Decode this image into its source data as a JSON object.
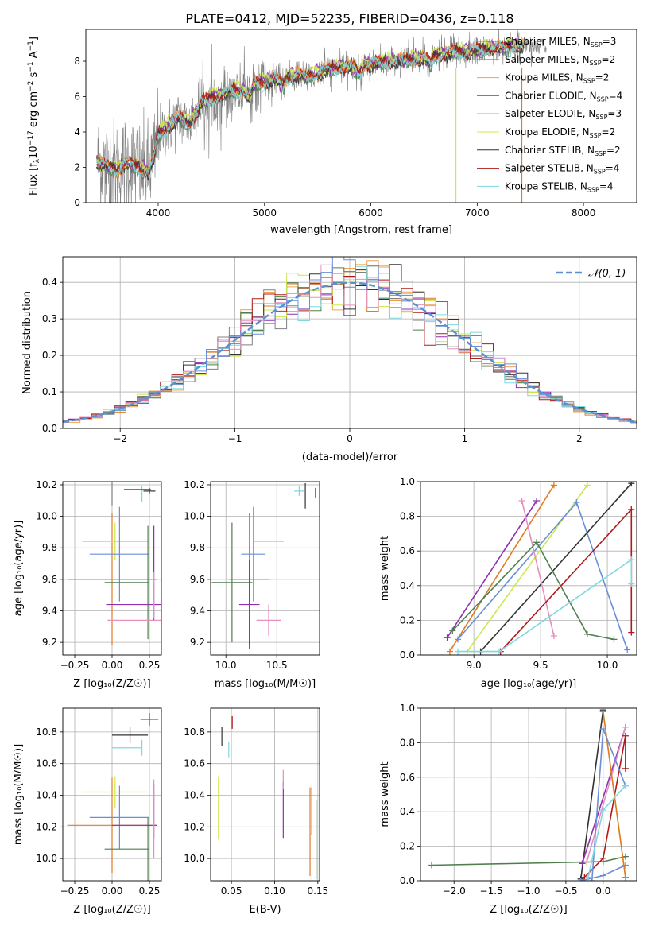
{
  "figure_title": "PLATE=0412, MJD=52235, FIBERID=0436, z=0.118",
  "colors": [
    "#808080",
    "#e07b24",
    "#f0a050",
    "#4f7f4f",
    "#8f2fb0",
    "#cde84a",
    "#333333",
    "#b01a1a",
    "#7fd7e0",
    "#e58fbf",
    "#6a8fd8"
  ],
  "spectrum_legend": [
    {
      "base": "Chabrier MILES, N",
      "sub": "SSP",
      "val": "=3",
      "color": "#808080"
    },
    {
      "base": "Salpeter MILES, N",
      "sub": "SSP",
      "val": "=2",
      "color": "#e07b24"
    },
    {
      "base": "Kroupa MILES, N",
      "sub": "SSP",
      "val": "=2",
      "color": "#f0a050"
    },
    {
      "base": "Chabrier ELODIE, N",
      "sub": "SSP",
      "val": "=4",
      "color": "#4f7f4f"
    },
    {
      "base": "Salpeter ELODIE, N",
      "sub": "SSP",
      "val": "=3",
      "color": "#8f2fb0"
    },
    {
      "base": "Kroupa ELODIE, N",
      "sub": "SSP",
      "val": "=2",
      "color": "#cde84a"
    },
    {
      "base": "Chabrier STELIB, N",
      "sub": "SSP",
      "val": "=2",
      "color": "#333333"
    },
    {
      "base": "Salpeter STELIB, N",
      "sub": "SSP",
      "val": "=4",
      "color": "#b01a1a"
    },
    {
      "base": "Kroupa STELIB, N",
      "sub": "SSP",
      "val": "=4",
      "color": "#7fd7e0"
    }
  ],
  "hist_legend": "𝒩(0, 1)",
  "chart_data": [
    {
      "id": "spectrum",
      "type": "line",
      "xlabel": "wavelength [Angstrom, rest frame]",
      "ylabel": "Flux [f_λ 10⁻¹⁷ erg cm⁻² s⁻¹ A⁻¹]",
      "xlim": [
        3320,
        8500
      ],
      "ylim": [
        0,
        9.8
      ],
      "xticks": [
        4000,
        5000,
        6000,
        7000,
        8000
      ],
      "yticks": [
        0,
        2,
        4,
        6,
        8
      ],
      "model_x": [
        3420,
        3500,
        3600,
        3700,
        3800,
        3900,
        3960,
        4000,
        4100,
        4200,
        4300,
        4400,
        4500,
        4600,
        4700,
        4800,
        4861,
        4900,
        5000,
        5100,
        5175,
        5200,
        5300,
        5400,
        5500,
        5600,
        5700,
        5800,
        5893,
        5950,
        6000,
        6100,
        6200,
        6300,
        6400,
        6500,
        6563,
        6600,
        6700,
        6800,
        6900,
        7000,
        7100,
        7200,
        7300,
        7400,
        7500
      ],
      "model_y": [
        2.3,
        2.1,
        1.9,
        2.2,
        2.0,
        1.7,
        2.4,
        3.8,
        4.3,
        4.8,
        4.4,
        5.6,
        5.9,
        6.1,
        6.3,
        6.3,
        6.0,
        6.7,
        6.8,
        7.0,
        6.5,
        7.0,
        7.2,
        7.1,
        7.3,
        7.5,
        7.6,
        7.7,
        7.3,
        7.8,
        7.8,
        7.9,
        8.0,
        8.0,
        8.1,
        8.2,
        7.8,
        8.3,
        8.4,
        8.5,
        8.5,
        8.6,
        8.7,
        8.7,
        8.8,
        8.8,
        8.9
      ],
      "model_offsets": [
        0,
        0.05,
        0.25,
        -0.15,
        0.3,
        0.4,
        -0.1,
        0.15,
        -0.05
      ],
      "data_noise_amplitude": [
        3.2,
        1.0
      ],
      "sky_lines": [
        6800,
        7000,
        7200,
        7245
      ]
    },
    {
      "id": "residual_hist",
      "type": "bar",
      "xlabel": "(data-model)/error",
      "ylabel": "Normed distribution",
      "xlim": [
        -2.5,
        2.5
      ],
      "ylim": [
        0,
        0.47
      ],
      "xticks": [
        -2,
        -1,
        0,
        1,
        2
      ],
      "yticks": [
        0.0,
        0.1,
        0.2,
        0.3,
        0.4
      ],
      "bin_width": 0.1,
      "normal_curve": {
        "mu": 0,
        "sigma": 1
      }
    },
    {
      "id": "age_vs_Z",
      "type": "scatter",
      "xlabel": "Z [log₁₀(Z/Z☉)]",
      "ylabel": "age  [log₁₀(age/yr)]",
      "xlim": [
        -0.33,
        0.33
      ],
      "ylim": [
        9.12,
        10.22
      ],
      "xticks": [
        -0.25,
        0.0,
        0.25
      ],
      "yticks": [
        9.2,
        9.4,
        9.6,
        9.8,
        10.0,
        10.2
      ],
      "points": [
        {
          "x": 0.0,
          "y": 10.17,
          "xerr": 0.0,
          "yerr": 0.1,
          "color": "#808080"
        },
        {
          "x": 0.0,
          "y": 9.6,
          "xerr": 0.3,
          "yerr": 0.42,
          "color": "#e07b24"
        },
        {
          "x": 0.02,
          "y": 9.84,
          "xerr": 0.22,
          "yerr": 0.12,
          "color": "#cde84a"
        },
        {
          "x": 0.05,
          "y": 9.76,
          "xerr": 0.2,
          "yerr": 0.3,
          "color": "#6a8fd8"
        },
        {
          "x": 0.24,
          "y": 9.58,
          "xerr": 0.0,
          "yerr": 0.36,
          "color": "#4f7f4f"
        },
        {
          "x": 0.1,
          "y": 9.58,
          "xerr": 0.15,
          "yerr": 0.0,
          "color": "#4f7f4f"
        },
        {
          "x": 0.15,
          "y": 9.44,
          "xerr": 0.19,
          "yerr": 0.0,
          "color": "#8f2fb0"
        },
        {
          "x": 0.28,
          "y": 9.64,
          "xerr": 0.0,
          "yerr": 0.3,
          "color": "#8f2fb0"
        },
        {
          "x": 0.17,
          "y": 9.34,
          "xerr": 0.2,
          "yerr": 0.0,
          "color": "#e58fbf"
        },
        {
          "x": 0.28,
          "y": 9.5,
          "xerr": 0.0,
          "yerr": 0.15,
          "color": "#e58fbf"
        },
        {
          "x": 0.2,
          "y": 10.14,
          "xerr": 0.0,
          "yerr": 0.05,
          "color": "#7fd7e0"
        },
        {
          "x": 0.17,
          "y": 10.17,
          "xerr": 0.09,
          "yerr": 0.0,
          "color": "#b01a1a"
        },
        {
          "x": 0.25,
          "y": 10.16,
          "xerr": 0.04,
          "yerr": 0.02,
          "color": "#333333"
        }
      ]
    },
    {
      "id": "age_vs_mass",
      "type": "scatter",
      "xlabel": "mass [log₁₀(M/M☉)]",
      "ylabel": "",
      "xlim": [
        9.85,
        10.92
      ],
      "ylim": [
        9.12,
        10.22
      ],
      "xticks": [
        10.0,
        10.5
      ],
      "yticks": [
        9.2,
        9.4,
        9.6,
        9.8,
        10.0,
        10.2
      ],
      "points": [
        {
          "x": 10.23,
          "y": 9.6,
          "xerr": 0.2,
          "yerr": 0.42,
          "color": "#e07b24"
        },
        {
          "x": 10.42,
          "y": 9.84,
          "xerr": 0.15,
          "yerr": 0.0,
          "color": "#cde84a"
        },
        {
          "x": 10.27,
          "y": 9.76,
          "xerr": 0.12,
          "yerr": 0.3,
          "color": "#6a8fd8"
        },
        {
          "x": 10.06,
          "y": 9.58,
          "xerr": 0.2,
          "yerr": 0.38,
          "color": "#4f7f4f"
        },
        {
          "x": 10.23,
          "y": 9.44,
          "xerr": 0.1,
          "yerr": 0.28,
          "color": "#8f2fb0"
        },
        {
          "x": 10.42,
          "y": 9.34,
          "xerr": 0.12,
          "yerr": 0.1,
          "color": "#e58fbf"
        },
        {
          "x": 10.72,
          "y": 10.16,
          "xerr": 0.05,
          "yerr": 0.03,
          "color": "#7fd7e0"
        },
        {
          "x": 10.78,
          "y": 10.13,
          "xerr": 0.0,
          "yerr": 0.08,
          "color": "#333333"
        },
        {
          "x": 10.88,
          "y": 10.15,
          "xerr": 0.0,
          "yerr": 0.03,
          "color": "#b01a1a"
        }
      ]
    },
    {
      "id": "weight_vs_age",
      "type": "line",
      "xlabel": "age  [log₁₀(age/yr)]",
      "ylabel": "mass weight",
      "xlim": [
        8.6,
        10.22
      ],
      "ylim": [
        0,
        1.0
      ],
      "xticks": [
        9.0,
        9.5,
        10.0
      ],
      "yticks": [
        0.0,
        0.2,
        0.4,
        0.6,
        0.8,
        1.0
      ],
      "series": [
        {
          "color": "#e07b24",
          "x": [
            8.82,
            9.6
          ],
          "y": [
            0.02,
            0.98
          ]
        },
        {
          "color": "#8f2fb0",
          "x": [
            8.8,
            9.47
          ],
          "y": [
            0.1,
            0.89
          ]
        },
        {
          "color": "#cde84a",
          "x": [
            8.95,
            9.85
          ],
          "y": [
            0.02,
            0.98
          ]
        },
        {
          "color": "#333333",
          "x": [
            9.05,
            10.18
          ],
          "y": [
            0.02,
            0.99
          ]
        },
        {
          "color": "#6a8fd8",
          "x": [
            8.88,
            9.77,
            10.15
          ],
          "y": [
            0.09,
            0.88,
            0.03
          ]
        },
        {
          "color": "#e58fbf",
          "x": [
            9.36,
            9.6
          ],
          "y": [
            0.89,
            0.11
          ]
        },
        {
          "color": "#4f7f4f",
          "x": [
            8.84,
            9.47,
            9.85,
            10.05
          ],
          "y": [
            0.14,
            0.65,
            0.12,
            0.09
          ]
        },
        {
          "color": "#b01a1a",
          "x": [
            9.2,
            10.18,
            10.18
          ],
          "y": [
            0.02,
            0.84,
            0.13
          ]
        },
        {
          "color": "#7fd7e0",
          "x": [
            8.88,
            9.19,
            10.18,
            10.18
          ],
          "y": [
            0.02,
            0.02,
            0.55,
            0.41
          ]
        }
      ]
    },
    {
      "id": "mass_vs_Z",
      "type": "scatter",
      "xlabel": "Z [log₁₀(Z/Z☉)]",
      "ylabel": "mass [log₁₀(M/M☉)]",
      "xlim": [
        -0.33,
        0.33
      ],
      "ylim": [
        9.86,
        10.95
      ],
      "xticks": [
        -0.25,
        0.0,
        0.25
      ],
      "yticks": [
        10.0,
        10.2,
        10.4,
        10.6,
        10.8
      ],
      "points": [
        {
          "x": 0.0,
          "y": 10.21,
          "xerr": 0.3,
          "yerr": 0.3,
          "color": "#e07b24"
        },
        {
          "x": 0.02,
          "y": 10.42,
          "xerr": 0.22,
          "yerr": 0.1,
          "color": "#cde84a"
        },
        {
          "x": 0.05,
          "y": 10.26,
          "xerr": 0.2,
          "yerr": 0.2,
          "color": "#6a8fd8"
        },
        {
          "x": 0.24,
          "y": 10.06,
          "xerr": 0.0,
          "yerr": 0.2,
          "color": "#4f7f4f"
        },
        {
          "x": 0.1,
          "y": 10.06,
          "xerr": 0.15,
          "yerr": 0.0,
          "color": "#4f7f4f"
        },
        {
          "x": 0.15,
          "y": 10.21,
          "xerr": 0.15,
          "yerr": 0.0,
          "color": "#8f2fb0"
        },
        {
          "x": 0.28,
          "y": 10.3,
          "xerr": 0.0,
          "yerr": 0.17,
          "color": "#8f2fb0"
        },
        {
          "x": 0.28,
          "y": 10.25,
          "xerr": 0.0,
          "yerr": 0.25,
          "color": "#e58fbf"
        },
        {
          "x": 0.1,
          "y": 10.7,
          "xerr": 0.1,
          "yerr": 0.0,
          "color": "#7fd7e0"
        },
        {
          "x": 0.2,
          "y": 10.7,
          "xerr": 0.0,
          "yerr": 0.05,
          "color": "#7fd7e0"
        },
        {
          "x": 0.12,
          "y": 10.78,
          "xerr": 0.12,
          "yerr": 0.05,
          "color": "#333333"
        },
        {
          "x": 0.25,
          "y": 10.88,
          "xerr": 0.06,
          "yerr": 0.04,
          "color": "#b01a1a"
        }
      ]
    },
    {
      "id": "mass_vs_EBV",
      "type": "scatter",
      "xlabel": "E(B-V)",
      "ylabel": "",
      "xlim": [
        0.026,
        0.152
      ],
      "ylim": [
        9.86,
        10.95
      ],
      "xticks": [
        0.05,
        0.1,
        0.15
      ],
      "yticks": [
        10.0,
        10.2,
        10.4,
        10.6,
        10.8
      ],
      "points": [
        {
          "x": 0.035,
          "y": 10.32,
          "xerr": 0.0,
          "yerr": 0.2,
          "color": "#cde84a"
        },
        {
          "x": 0.039,
          "y": 10.77,
          "xerr": 0.0,
          "yerr": 0.06,
          "color": "#333333"
        },
        {
          "x": 0.047,
          "y": 10.69,
          "xerr": 0.0,
          "yerr": 0.05,
          "color": "#7fd7e0"
        },
        {
          "x": 0.051,
          "y": 10.86,
          "xerr": 0.0,
          "yerr": 0.04,
          "color": "#b01a1a"
        },
        {
          "x": 0.11,
          "y": 10.31,
          "xerr": 0.0,
          "yerr": 0.18,
          "color": "#8f2fb0"
        },
        {
          "x": 0.11,
          "y": 10.5,
          "xerr": 0.0,
          "yerr": 0.06,
          "color": "#e58fbf"
        },
        {
          "x": 0.141,
          "y": 10.17,
          "xerr": 0.0,
          "yerr": 0.28,
          "color": "#e07b24"
        },
        {
          "x": 0.143,
          "y": 10.3,
          "xerr": 0.0,
          "yerr": 0.15,
          "color": "#808080"
        },
        {
          "x": 0.148,
          "y": 10.12,
          "xerr": 0.0,
          "yerr": 0.25,
          "color": "#4f7f4f"
        }
      ]
    },
    {
      "id": "weight_vs_Z",
      "type": "line",
      "xlabel": "Z [log₁₀(Z/Z☉)]",
      "ylabel": "mass weight",
      "xlim": [
        -2.45,
        0.45
      ],
      "ylim": [
        0,
        1.0
      ],
      "xticks": [
        -2.0,
        -1.5,
        -1.0,
        -0.5,
        0.0
      ],
      "yticks": [
        0.0,
        0.2,
        0.4,
        0.6,
        0.8,
        1.0
      ],
      "series": [
        {
          "color": "#4f7f4f",
          "x": [
            -2.3,
            0.0,
            0.3
          ],
          "y": [
            0.09,
            0.11,
            0.14
          ]
        },
        {
          "color": "#333333",
          "x": [
            -0.3,
            0.0
          ],
          "y": [
            0.01,
            0.99
          ]
        },
        {
          "color": "#8f2fb0",
          "x": [
            -0.28,
            0.3
          ],
          "y": [
            0.1,
            0.89
          ]
        },
        {
          "color": "#e58fbf",
          "x": [
            -0.22,
            0.3
          ],
          "y": [
            0.11,
            0.89
          ]
        },
        {
          "color": "#b01a1a",
          "x": [
            -0.25,
            0.0,
            0.3,
            0.3
          ],
          "y": [
            0.02,
            0.13,
            0.84,
            0.65
          ]
        },
        {
          "color": "#cde84a",
          "x": [
            0.0,
            0.3
          ],
          "y": [
            0.98,
            0.02
          ]
        },
        {
          "color": "#e07b24",
          "x": [
            0.0,
            0.3
          ],
          "y": [
            0.98,
            0.02
          ]
        },
        {
          "color": "#6a8fd8",
          "x": [
            -0.3,
            0.0,
            0.3
          ],
          "y": [
            0.0,
            0.03,
            0.09
          ]
        },
        {
          "color": "#6a8fd8",
          "x": [
            -0.15,
            0.0,
            0.3
          ],
          "y": [
            0.0,
            0.88,
            0.55
          ]
        },
        {
          "color": "#7fd7e0",
          "x": [
            -0.2,
            0.0,
            0.3
          ],
          "y": [
            0.02,
            0.41,
            0.55
          ]
        }
      ]
    }
  ]
}
